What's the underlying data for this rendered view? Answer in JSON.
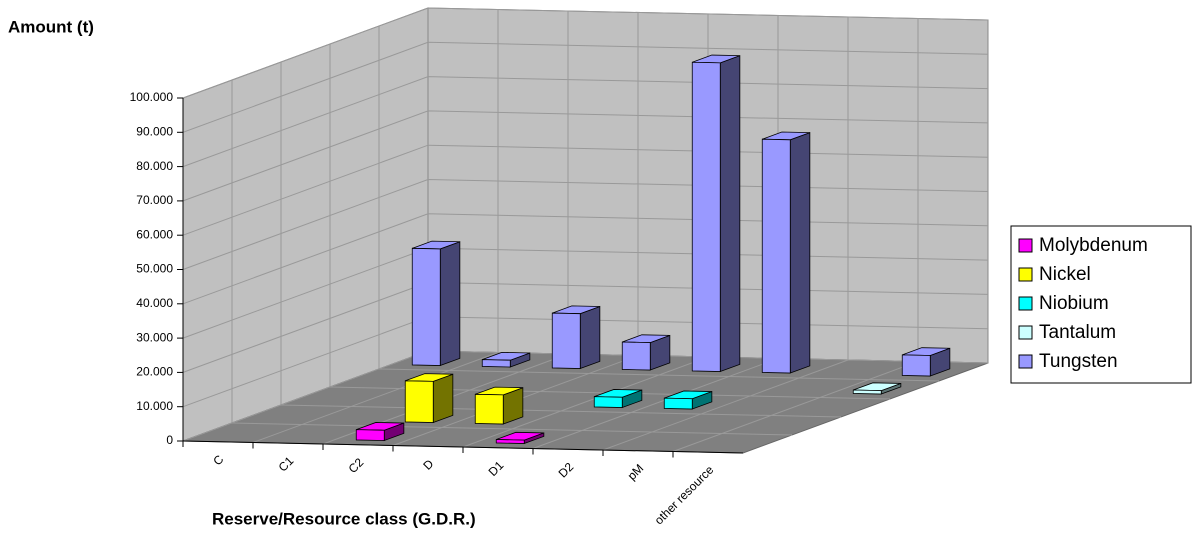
{
  "chart_data": {
    "type": "bar3d",
    "y_label": "Amount (t)",
    "x_label": "Reserve/Resource class (G.D.R.)",
    "categories": [
      "C",
      "C1",
      "C2",
      "D",
      "D1",
      "D2",
      "pM",
      "other resource"
    ],
    "series": [
      {
        "name": "Molybdenum",
        "color": "#ff00ff",
        "values": [
          null,
          null,
          3000,
          null,
          1000,
          null,
          null,
          null
        ]
      },
      {
        "name": "Nickel",
        "color": "#ffff00",
        "values": [
          null,
          null,
          12000,
          8500,
          null,
          null,
          null,
          null
        ]
      },
      {
        "name": "Niobium",
        "color": "#00ffff",
        "values": [
          null,
          null,
          null,
          null,
          3000,
          3000,
          null,
          null
        ]
      },
      {
        "name": "Tantalum",
        "color": "#ccffff",
        "values": [
          null,
          null,
          null,
          null,
          null,
          null,
          null,
          1000
        ]
      },
      {
        "name": "Tungsten",
        "color": "#9999ff",
        "values": [
          34000,
          2000,
          16000,
          8000,
          90000,
          68000,
          null,
          6000
        ]
      }
    ],
    "ylim": [
      0,
      100000
    ],
    "yticks": [
      0,
      {
        "value": 10000,
        "label": "10.000"
      },
      {
        "value": 20000,
        "label": "20.000"
      },
      {
        "value": 30000,
        "label": "30.000"
      },
      {
        "value": 40000,
        "label": "40.000"
      },
      {
        "value": 50000,
        "label": "50.000"
      },
      {
        "value": 60000,
        "label": "60.000"
      },
      {
        "value": 70000,
        "label": "70.000"
      },
      {
        "value": 80000,
        "label": "80.000"
      },
      {
        "value": 90000,
        "label": "90.000"
      },
      {
        "value": 100000,
        "label": "100.000"
      }
    ],
    "grid": true,
    "legend": "right"
  }
}
